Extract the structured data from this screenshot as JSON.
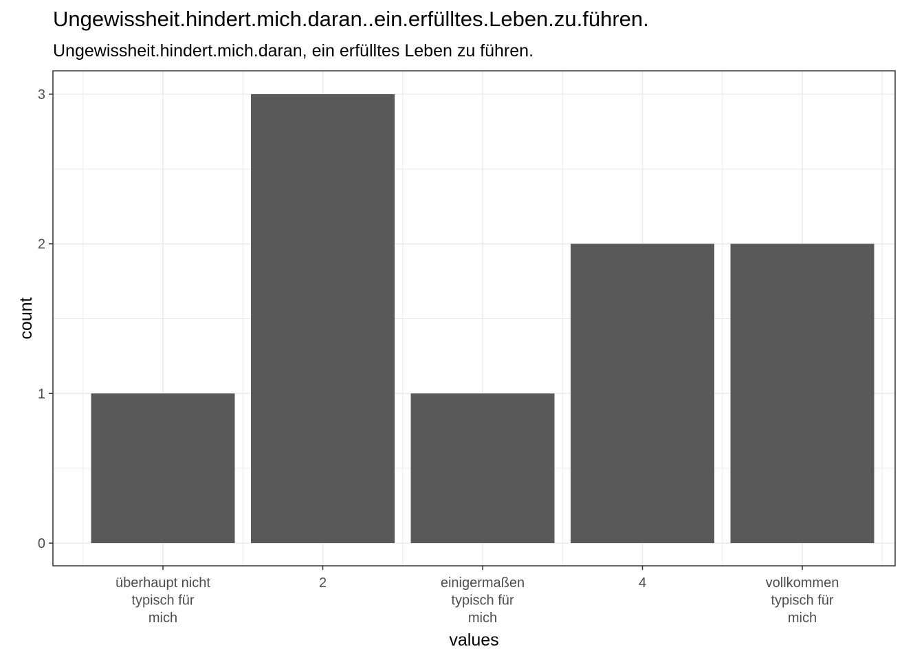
{
  "title": "Ungewissheit.hindert.mich.daran..ein.erfülltes.Leben.zu.führen.",
  "subtitle": "Ungewissheit.hindert.mich.daran, ein erfülltes Leben zu führen.",
  "chart_data": {
    "type": "bar",
    "categories": [
      [
        "überhaupt nicht",
        "typisch für",
        "mich"
      ],
      [
        "2"
      ],
      [
        "einigermaßen",
        "typisch für",
        "mich"
      ],
      [
        "4"
      ],
      [
        "vollkommen",
        "typisch für",
        "mich"
      ]
    ],
    "values": [
      1,
      3,
      1,
      2,
      2
    ],
    "xlabel": "values",
    "ylabel": "count",
    "ylim": [
      0,
      3
    ],
    "yticks": [
      "0",
      "1",
      "2",
      "3"
    ],
    "grid": true,
    "bar_color": "#595959",
    "grid_color": "#ebebeb",
    "panel_border_color": "#333333"
  }
}
